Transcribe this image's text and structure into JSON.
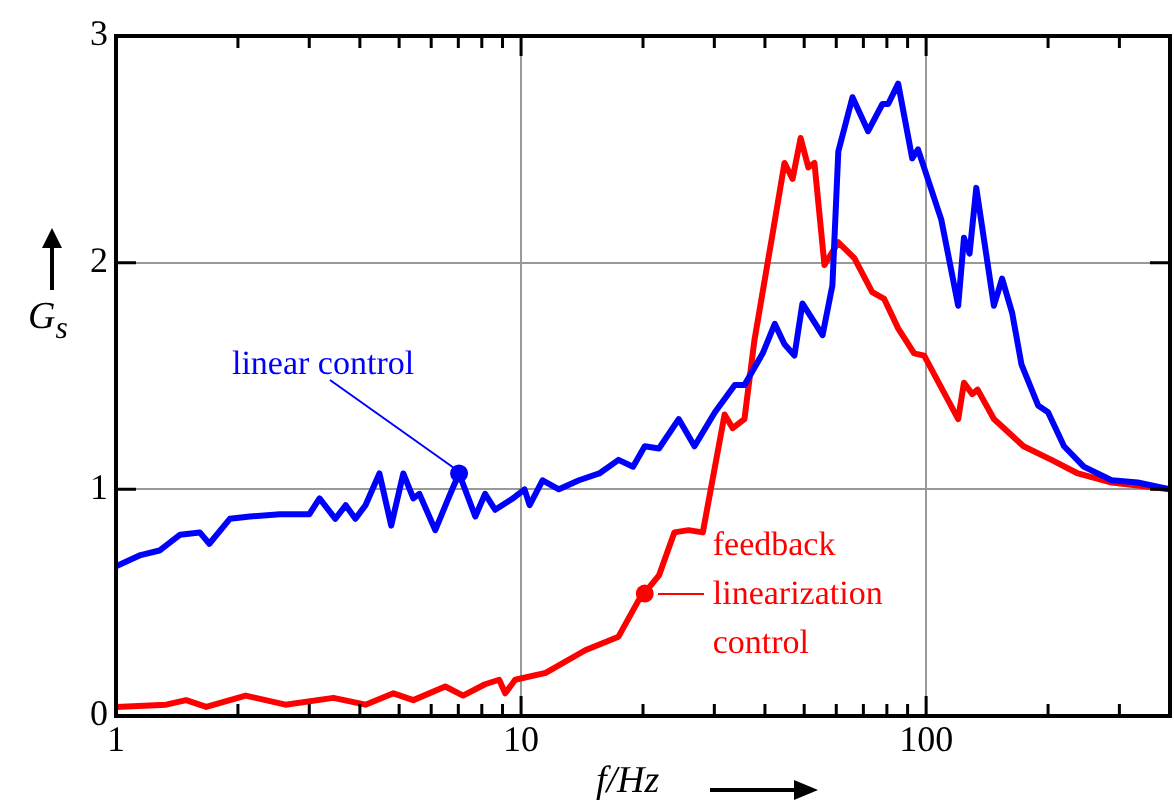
{
  "chart_data": {
    "type": "line",
    "xlabel": "f/Hz",
    "ylabel": "G$_{s}$",
    "log": "x",
    "grid": true,
    "legend": false,
    "marker": "none",
    "line_style": "solid",
    "xlim": [
      1,
      400
    ],
    "ylim": [
      0,
      3
    ],
    "xticks": [
      1,
      {
        "value": 2,
        "label": null
      },
      {
        "value": 3,
        "label": null
      },
      {
        "value": 4,
        "label": null
      },
      {
        "value": 5,
        "label": null
      },
      {
        "value": 6,
        "label": null
      },
      {
        "value": 7,
        "label": null
      },
      {
        "value": 8,
        "label": null
      },
      {
        "value": 9,
        "label": null
      },
      10,
      {
        "value": 20,
        "label": null
      },
      {
        "value": 30,
        "label": null
      },
      {
        "value": 40,
        "label": null
      },
      {
        "value": 50,
        "label": null
      },
      {
        "value": 60,
        "label": null
      },
      {
        "value": 70,
        "label": null
      },
      {
        "value": 80,
        "label": null
      },
      {
        "value": 90,
        "label": null
      },
      100,
      {
        "value": 200,
        "label": null
      },
      {
        "value": 300,
        "label": null
      },
      {
        "value": 400,
        "label": null
      }
    ],
    "yticks": [
      0,
      1,
      2,
      3
    ],
    "series": [
      {
        "color": "#0000ff",
        "x": [
          1,
          1.15,
          1.28,
          1.44,
          1.61,
          1.7,
          1.91,
          2.14,
          2.54,
          3,
          3.18,
          3.48,
          3.69,
          3.9,
          4.13,
          4.47,
          4.78,
          5.12,
          5.42,
          5.61,
          6.14,
          6.65,
          7.03,
          7.71,
          8.15,
          8.63,
          9.55,
          10.2,
          10.5,
          11.3,
          12.4,
          13.9,
          15.6,
          17.4,
          18.9,
          20.2,
          21.9,
          24.5,
          26.8,
          30.1,
          33.7,
          35.6,
          39.5,
          42.3,
          44.7,
          47.3,
          49.5,
          55.5,
          58.7,
          60.7,
          65.8,
          71.9,
          78,
          80.6,
          85.3,
          92.4,
          95.5,
          109,
          120,
          124,
          128,
          133,
          147,
          154,
          163,
          172,
          189,
          200,
          219,
          245,
          287,
          333,
          400
        ],
        "values": [
          0.66,
          0.71,
          0.73,
          0.8,
          0.81,
          0.76,
          0.87,
          0.88,
          0.89,
          0.89,
          0.96,
          0.87,
          0.93,
          0.87,
          0.93,
          1.07,
          0.84,
          1.07,
          0.96,
          0.98,
          0.82,
          0.97,
          1.07,
          0.88,
          0.98,
          0.91,
          0.96,
          1.0,
          0.93,
          1.04,
          1.0,
          1.04,
          1.07,
          1.13,
          1.1,
          1.19,
          1.18,
          1.31,
          1.19,
          1.34,
          1.46,
          1.46,
          1.6,
          1.73,
          1.64,
          1.59,
          1.82,
          1.68,
          1.9,
          2.49,
          2.73,
          2.58,
          2.7,
          2.7,
          2.79,
          2.46,
          2.5,
          2.19,
          1.81,
          2.11,
          2.04,
          2.33,
          1.81,
          1.93,
          1.78,
          1.55,
          1.37,
          1.34,
          1.19,
          1.1,
          1.04,
          1.03,
          1.0
        ]
      },
      {
        "color": "#ff0000",
        "x": [
          1,
          1.33,
          1.49,
          1.67,
          2.09,
          2.62,
          3.44,
          4.13,
          4.84,
          5.42,
          6.5,
          7.19,
          8.15,
          8.83,
          9.14,
          9.67,
          11.5,
          14.4,
          17.4,
          19.5,
          21.9,
          23.9,
          25.9,
          28.1,
          31.8,
          33.3,
          35.6,
          37.7,
          41.8,
          44.7,
          46.8,
          49,
          51.2,
          53,
          56.1,
          60.7,
          66.5,
          73.6,
          78.8,
          85.3,
          93.4,
          98.9,
          120,
          124,
          130,
          134,
          147,
          174,
          204,
          237,
          287,
          400
        ],
        "values": [
          0.04,
          0.05,
          0.07,
          0.04,
          0.09,
          0.05,
          0.08,
          0.05,
          0.1,
          0.07,
          0.13,
          0.09,
          0.14,
          0.16,
          0.1,
          0.16,
          0.19,
          0.29,
          0.35,
          0.51,
          0.62,
          0.81,
          0.82,
          0.81,
          1.33,
          1.27,
          1.31,
          1.66,
          2.13,
          2.44,
          2.37,
          2.55,
          2.42,
          2.44,
          1.99,
          2.09,
          2.02,
          1.87,
          1.84,
          1.71,
          1.6,
          1.59,
          1.31,
          1.47,
          1.42,
          1.44,
          1.31,
          1.19,
          1.13,
          1.07,
          1.03,
          1.0
        ]
      }
    ],
    "annotations": [
      {
        "text": "linear control",
        "x": 7.03,
        "y": 1.07
      },
      {
        "text": "feedback linearization control",
        "x": 20.2,
        "y": 0.54
      }
    ]
  }
}
